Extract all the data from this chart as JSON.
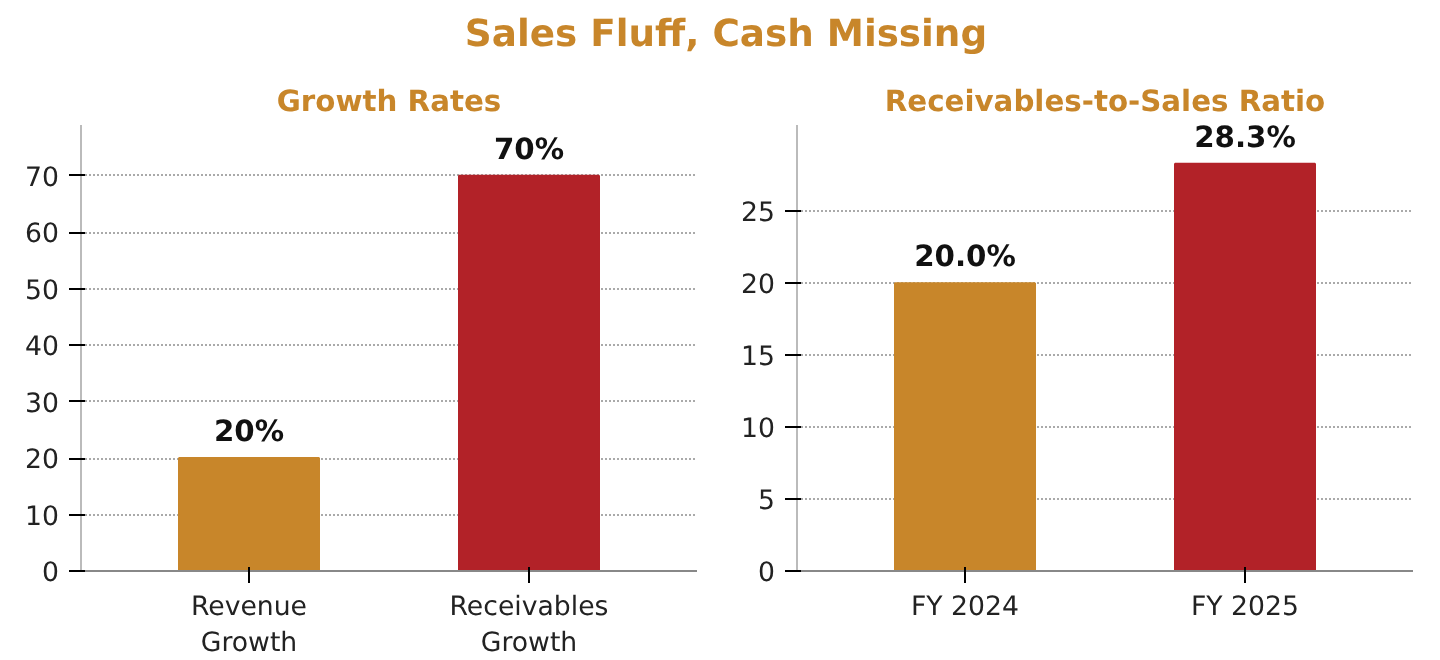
{
  "chart_data": [
    {
      "type": "bar",
      "title": "Growth Rates",
      "annotations": [
        "Sales Fluff, Cash Missing"
      ],
      "categories": [
        "Revenue\nGrowth",
        "Receivables\nGrowth"
      ],
      "values": [
        20,
        70
      ],
      "colors": [
        "#c8862a",
        "#b22228"
      ],
      "value_labels": [
        "20%",
        "70%"
      ],
      "ylim": [
        0,
        79
      ],
      "yticks": [
        0,
        10,
        20,
        30,
        40,
        50,
        60,
        70
      ],
      "grid": "y"
    },
    {
      "type": "bar",
      "title": "Receivables-to-Sales Ratio",
      "categories": [
        "FY 2024",
        "FY 2025"
      ],
      "values": [
        20.0,
        28.3
      ],
      "colors": [
        "#c8862a",
        "#b22228"
      ],
      "value_labels": [
        "20.0%",
        "28.3%"
      ],
      "ylim": [
        0,
        31
      ],
      "yticks": [
        0,
        5,
        10,
        15,
        20,
        25
      ],
      "grid": "y"
    }
  ]
}
